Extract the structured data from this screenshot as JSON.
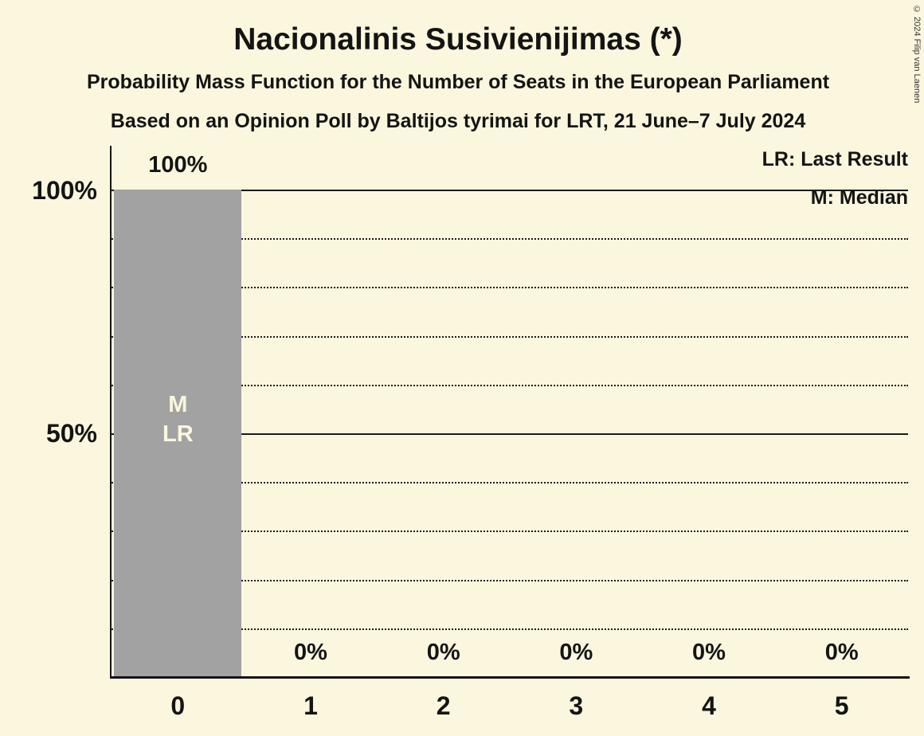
{
  "title": "Nacionalinis Susivienijimas (*)",
  "subtitle1": "Probability Mass Function for the Number of Seats in the European Parliament",
  "subtitle2": "Based on an Opinion Poll by Baltijos tyrimai for LRT, 21 June–7 July 2024",
  "copyright": "© 2024 Filip van Laenen",
  "legend": {
    "lr": "LR: Last Result",
    "m": "M: Median"
  },
  "colors": {
    "background": "#FBF7DE",
    "bar": "#A2A2A2",
    "text": "#141414",
    "bar_annotation": "#FBF7DE"
  },
  "chart_data": {
    "type": "bar",
    "title": "Nacionalinis Susivienijimas (*)",
    "categories": [
      "0",
      "1",
      "2",
      "3",
      "4",
      "5"
    ],
    "values": [
      100,
      0,
      0,
      0,
      0,
      0
    ],
    "bar_labels": [
      "100%",
      "0%",
      "0%",
      "0%",
      "0%",
      "0%"
    ],
    "bar_annotations": [
      [
        "M",
        "LR"
      ],
      [],
      [],
      [],
      [],
      []
    ],
    "xlabel": "Number of Seats in the European Parliament",
    "ylabel": "Probability Mass",
    "ylim": [
      0,
      100
    ],
    "ytick_labels": [
      "100%",
      "50%"
    ],
    "ytick_values": [
      100,
      50
    ],
    "solid_gridlines": [
      100,
      50
    ],
    "dotted_gridlines": [
      90,
      80,
      70,
      60,
      40,
      30,
      20,
      10
    ],
    "grid": true,
    "legend_position": "top-right"
  }
}
